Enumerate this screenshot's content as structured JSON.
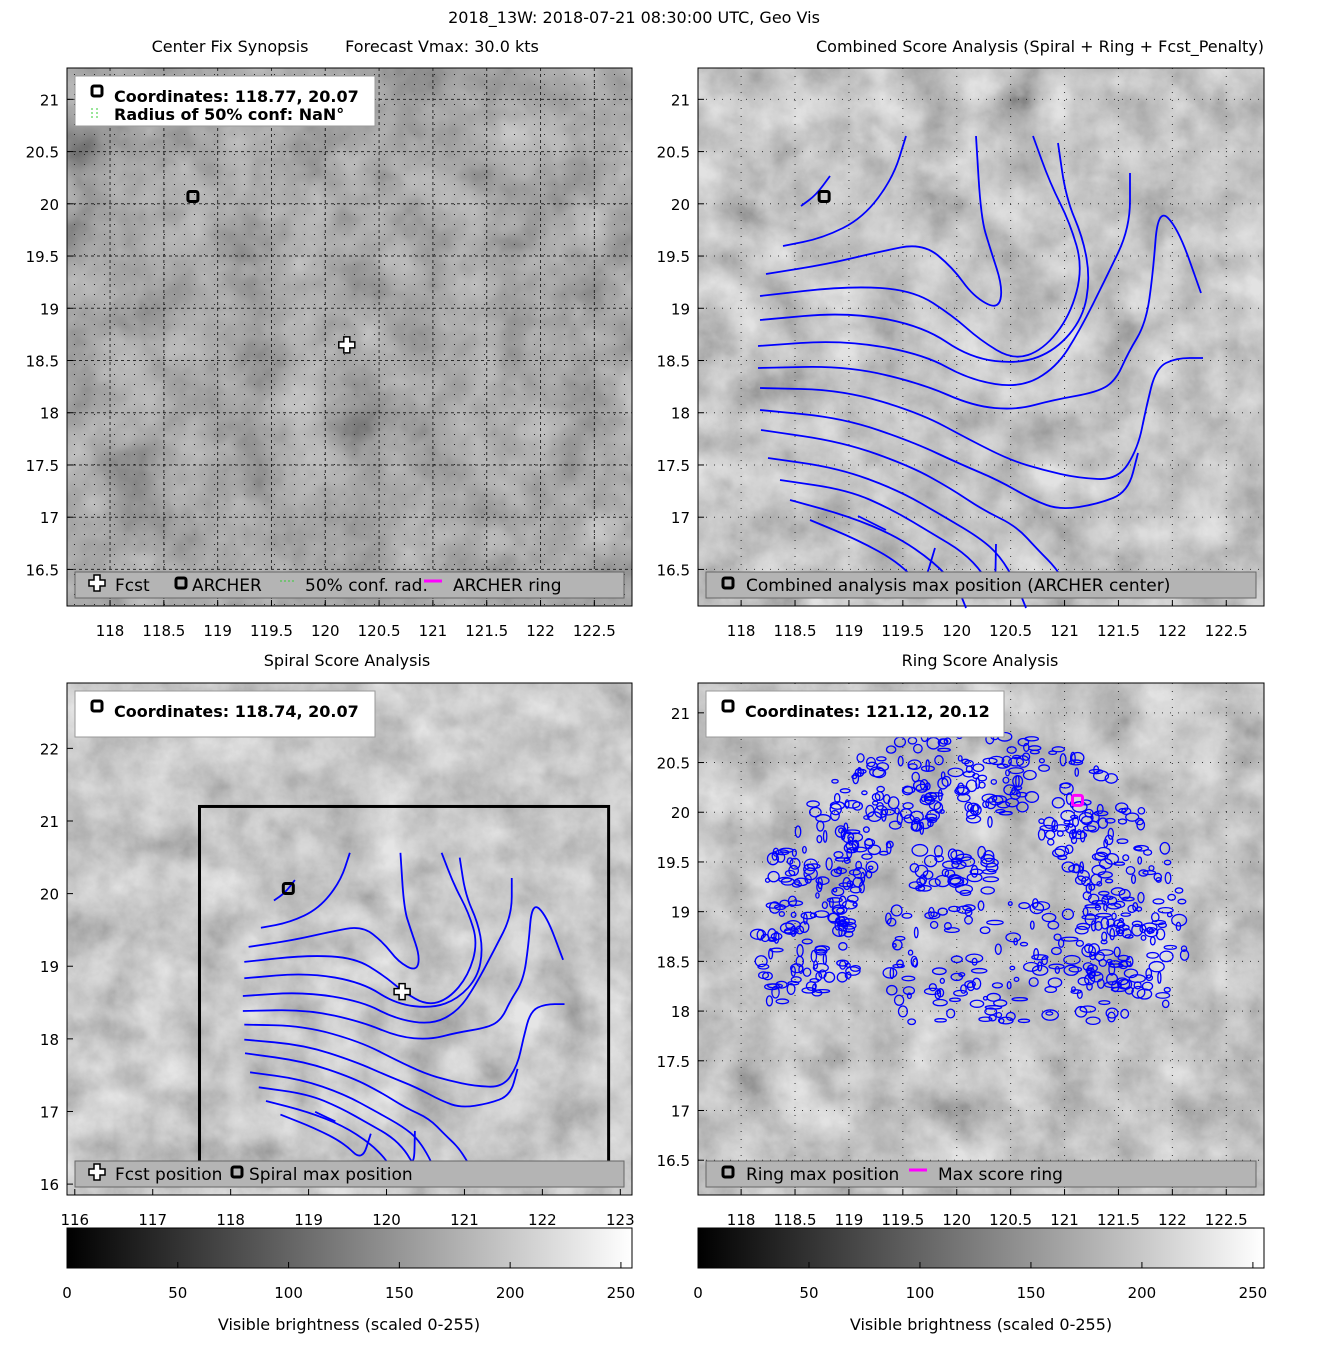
{
  "figure": {
    "suptitle": "2018_13W: 2018-07-21 08:30:00 UTC, Geo Vis"
  },
  "colors": {
    "contour": "#0000ff",
    "ring": "#ff00ff",
    "marker": "#000000",
    "legend_bg": "#b4b4b4"
  },
  "chart_data": [
    {
      "id": "synopsis",
      "type": "heatmap",
      "title_left": "Center Fix Synopsis",
      "title_right": "Forecast Vmax: 30.0 kts",
      "xlim": [
        117.6,
        122.85
      ],
      "ylim": [
        16.15,
        21.3
      ],
      "xticks": [
        "118",
        "118.5",
        "119",
        "119.5",
        "120",
        "120.5",
        "121",
        "121.5",
        "122",
        "122.5"
      ],
      "yticks": [
        "16.5",
        "17",
        "17.5",
        "18",
        "18.5",
        "19",
        "19.5",
        "20",
        "20.5",
        "21"
      ],
      "info_lines": [
        "Coordinates: 118.77, 20.07",
        "Radius of 50% conf: NaN°"
      ],
      "archer": {
        "lon": 118.77,
        "lat": 20.07
      },
      "fcst": {
        "lon": 120.2,
        "lat": 18.65
      },
      "legend": [
        "Fcst",
        "ARCHER",
        "50% conf. rad.",
        "ARCHER ring"
      ],
      "grid": "dotted"
    },
    {
      "id": "combined",
      "type": "heatmap",
      "title": "Combined Score Analysis (Spiral + Ring + Fcst_Penalty)",
      "xlim": [
        117.6,
        122.85
      ],
      "ylim": [
        16.15,
        21.3
      ],
      "xticks": [
        "118",
        "118.5",
        "119",
        "119.5",
        "120",
        "120.5",
        "121",
        "121.5",
        "122",
        "122.5"
      ],
      "yticks": [
        "16.5",
        "17",
        "17.5",
        "18",
        "18.5",
        "19",
        "19.5",
        "20",
        "20.5",
        "21"
      ],
      "archer": {
        "lon": 118.77,
        "lat": 20.07
      },
      "legend": [
        "Combined analysis max position (ARCHER center)"
      ]
    },
    {
      "id": "spiral",
      "type": "heatmap",
      "title": "Spiral Score Analysis",
      "xlim": [
        115.9,
        123.15
      ],
      "ylim": [
        15.85,
        22.9
      ],
      "xticks": [
        "116",
        "117",
        "118",
        "119",
        "120",
        "121",
        "122",
        "123"
      ],
      "yticks": [
        "16",
        "17",
        "18",
        "19",
        "20",
        "21",
        "22"
      ],
      "info_lines": [
        "Coordinates: 118.74, 20.07"
      ],
      "spiral_max": {
        "lon": 118.74,
        "lat": 20.07
      },
      "fcst": {
        "lon": 120.2,
        "lat": 18.65
      },
      "box": {
        "lon": [
          117.6,
          122.85
        ],
        "lat": [
          16.15,
          21.2
        ]
      },
      "legend": [
        "Fcst position",
        "Spiral max position"
      ]
    },
    {
      "id": "ring",
      "type": "heatmap",
      "title": "Ring Score Analysis",
      "xlim": [
        117.6,
        122.85
      ],
      "ylim": [
        16.15,
        21.3
      ],
      "xticks": [
        "118",
        "118.5",
        "119",
        "119.5",
        "120",
        "120.5",
        "121",
        "121.5",
        "122",
        "122.5"
      ],
      "yticks": [
        "16.5",
        "17",
        "17.5",
        "18",
        "18.5",
        "19",
        "19.5",
        "20",
        "20.5",
        "21"
      ],
      "info_lines": [
        "Coordinates: 121.12, 20.12"
      ],
      "ring_max": {
        "lon": 121.12,
        "lat": 20.12
      },
      "legend": [
        "Ring max position",
        "Max score ring"
      ]
    }
  ],
  "colorbars": [
    {
      "ticks": [
        "0",
        "50",
        "100",
        "150",
        "200",
        "250"
      ],
      "label": "Visible brightness (scaled 0-255)"
    },
    {
      "ticks": [
        "0",
        "50",
        "100",
        "150",
        "200",
        "250"
      ],
      "label": "Visible brightness (scaled 0-255)"
    }
  ]
}
